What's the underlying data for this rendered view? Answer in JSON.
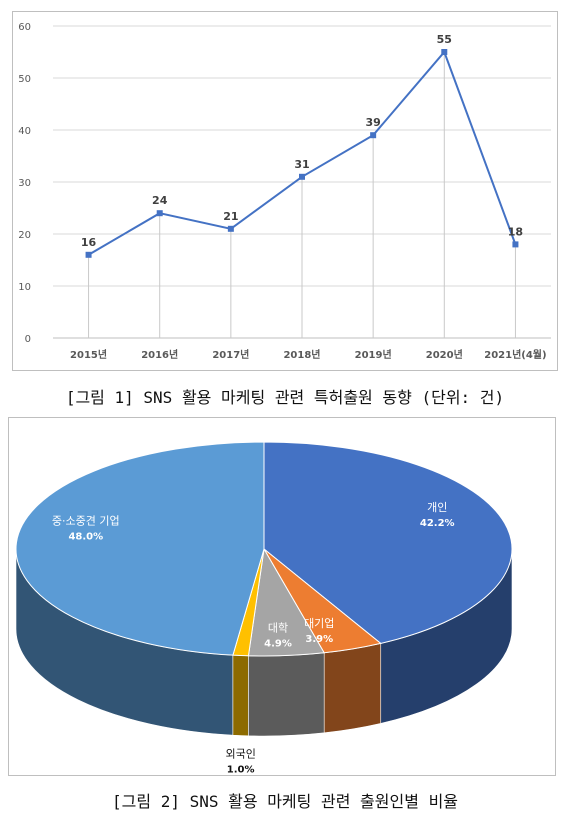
{
  "figure1": {
    "caption": "[그림 1] SNS 활용 마케팅 관련 특허출원 동향 (단위: 건)",
    "chart_data": {
      "type": "line",
      "categories": [
        "2015년",
        "2016년",
        "2017년",
        "2018년",
        "2019년",
        "2020년",
        "2021년(4월)"
      ],
      "series": [
        {
          "values": [
            16,
            24,
            21,
            31,
            39,
            55,
            18
          ]
        }
      ],
      "data_labels": [
        "16",
        "24",
        "21",
        "31",
        "39",
        "55",
        "18"
      ],
      "ylim": [
        0,
        60
      ],
      "yticks": [
        "0",
        "10",
        "20",
        "30",
        "40",
        "50",
        "60"
      ],
      "grid": true,
      "color": "#4472c4",
      "marker": "square"
    }
  },
  "figure2": {
    "caption": "[그림 2] SNS 활용 마케팅 관련 출원인별 비율",
    "chart_data": {
      "type": "pie",
      "style": "3d",
      "slices": [
        {
          "label": "개인",
          "value": 42.2,
          "value_label": "42.2%",
          "color": "#4472c4"
        },
        {
          "label": "대기업",
          "value": 3.9,
          "value_label": "3.9%",
          "color": "#ed7d31"
        },
        {
          "label": "대학",
          "value": 4.9,
          "value_label": "4.9%",
          "color": "#a5a5a5"
        },
        {
          "label": "외국인",
          "value": 1.0,
          "value_label": "1.0%",
          "color": "#ffc000"
        },
        {
          "label": "중·소중견 기업",
          "value": 48.0,
          "value_label": "48.0%",
          "color": "#5b9bd5"
        }
      ]
    }
  }
}
